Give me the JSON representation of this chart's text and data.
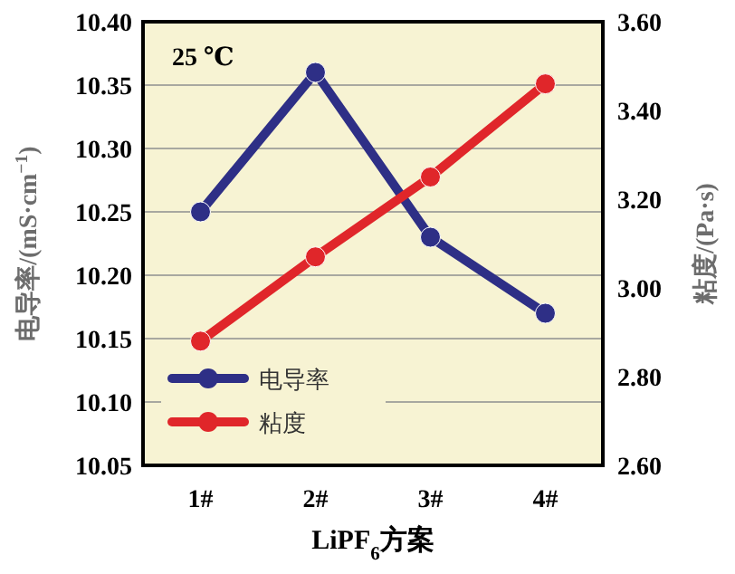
{
  "chart_data": {
    "type": "line",
    "categories": [
      "1#",
      "2#",
      "3#",
      "4#"
    ],
    "xlabel": "LiPF$_{6}$方案",
    "ylabel": "电导率/(mS·cm$^{−1}$)",
    "y2label": "粘度/(Pa·s)",
    "annotations": [
      "25 ℃"
    ],
    "series": [
      {
        "name": "电导率",
        "color": "#2e2f86",
        "values": [
          10.25,
          10.36,
          10.23,
          10.17
        ]
      },
      {
        "name": "粘度",
        "color": "#e0262a",
        "axis": "y2",
        "values": [
          2.88,
          3.07,
          3.25,
          3.46
        ]
      }
    ],
    "ylim": [
      10.05,
      10.4
    ],
    "yticks": [
      {
        "value": 10.05,
        "label": "10.05"
      },
      {
        "value": 10.1,
        "label": "10.10"
      },
      {
        "value": 10.15,
        "label": "10.15"
      },
      {
        "value": 10.2,
        "label": "10.20"
      },
      {
        "value": 10.25,
        "label": "10.25"
      },
      {
        "value": 10.3,
        "label": "10.30"
      },
      {
        "value": 10.35,
        "label": "10.35"
      },
      {
        "value": 10.4,
        "label": "10.40"
      }
    ],
    "y2lim": [
      2.6,
      3.6
    ],
    "y2ticks": [
      {
        "value": 2.6,
        "label": "2.60"
      },
      {
        "value": 2.8,
        "label": "2.80"
      },
      {
        "value": 3.0,
        "label": "3.00"
      },
      {
        "value": 3.2,
        "label": "3.20"
      },
      {
        "value": 3.4,
        "label": "3.40"
      },
      {
        "value": 3.6,
        "label": "3.60"
      }
    ],
    "grid": "y",
    "legend": "bottom left",
    "marker": "circle",
    "line_style": "solid"
  }
}
